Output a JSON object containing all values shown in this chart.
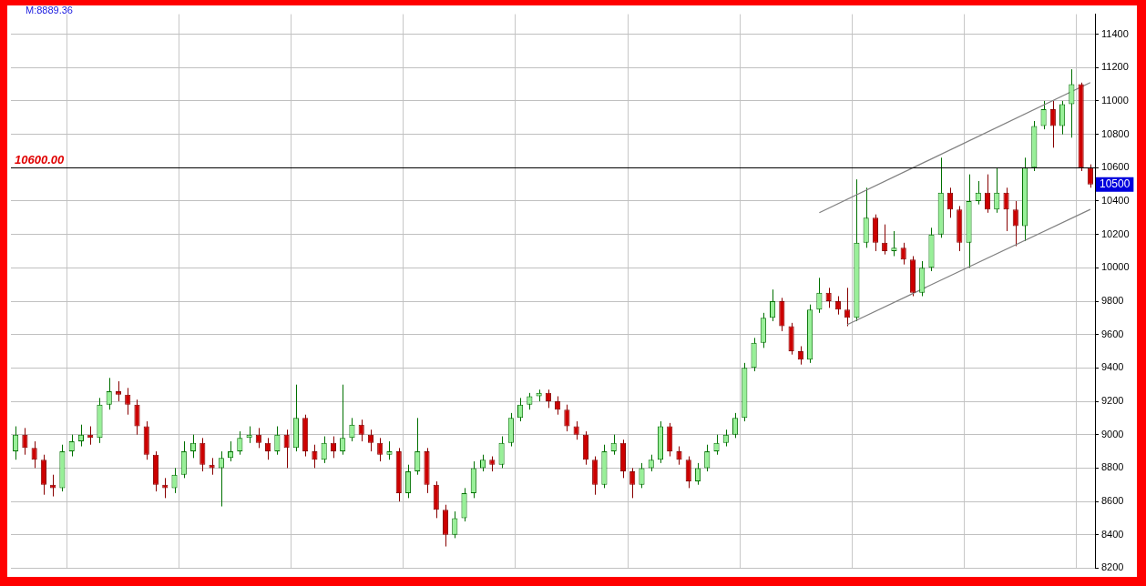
{
  "chart_data": {
    "type": "candlestick",
    "categories": [
      null,
      null,
      null,
      null,
      null,
      null,
      null,
      null,
      null,
      null,
      null,
      null,
      null,
      null,
      null,
      null,
      null,
      null,
      null,
      null,
      null,
      null,
      null,
      null,
      null,
      null,
      null,
      null,
      null,
      null,
      null,
      null,
      null,
      null,
      null,
      null,
      null,
      null,
      null,
      null,
      null,
      null,
      null,
      null,
      null,
      null,
      null,
      null,
      null,
      null,
      null,
      null,
      null,
      null,
      null,
      null,
      null,
      null,
      null,
      null,
      null,
      null,
      null,
      null,
      null,
      null,
      null,
      null,
      null,
      null,
      null,
      null,
      null,
      null,
      null,
      null,
      null,
      null,
      null,
      null,
      null,
      null,
      null,
      null,
      null,
      null,
      null,
      null,
      null,
      null,
      null,
      null,
      null,
      null,
      null,
      null,
      null,
      null,
      null,
      null,
      null,
      null,
      null,
      null,
      null,
      null,
      null,
      null,
      null,
      null,
      null,
      null,
      null,
      null,
      null,
      null
    ],
    "ohlc": [
      [
        8900,
        9050,
        8850,
        9000
      ],
      [
        9000,
        9040,
        8880,
        8920
      ],
      [
        8920,
        8960,
        8800,
        8850
      ],
      [
        8850,
        8880,
        8640,
        8700
      ],
      [
        8700,
        8760,
        8630,
        8680
      ],
      [
        8680,
        8940,
        8660,
        8900
      ],
      [
        8900,
        9000,
        8870,
        8960
      ],
      [
        8960,
        9060,
        8930,
        9000
      ],
      [
        9000,
        9050,
        8940,
        8980
      ],
      [
        8980,
        9220,
        8950,
        9180
      ],
      [
        9180,
        9340,
        9150,
        9260
      ],
      [
        9260,
        9320,
        9200,
        9240
      ],
      [
        9240,
        9280,
        9120,
        9180
      ],
      [
        9180,
        9210,
        9000,
        9050
      ],
      [
        9050,
        9080,
        8850,
        8880
      ],
      [
        8880,
        8900,
        8660,
        8700
      ],
      [
        8700,
        8740,
        8620,
        8680
      ],
      [
        8680,
        8800,
        8650,
        8760
      ],
      [
        8760,
        8960,
        8740,
        8900
      ],
      [
        8900,
        9000,
        8860,
        8950
      ],
      [
        8950,
        8980,
        8780,
        8820
      ],
      [
        8820,
        8860,
        8760,
        8800
      ],
      [
        8800,
        8900,
        8570,
        8860
      ],
      [
        8860,
        8960,
        8840,
        8900
      ],
      [
        8900,
        9020,
        8880,
        8980
      ],
      [
        8980,
        9050,
        8950,
        9000
      ],
      [
        9000,
        9040,
        8920,
        8950
      ],
      [
        8950,
        8980,
        8850,
        8900
      ],
      [
        8900,
        9050,
        8880,
        9000
      ],
      [
        9000,
        9030,
        8800,
        8920
      ],
      [
        8920,
        9300,
        8900,
        9100
      ],
      [
        9100,
        9120,
        8870,
        8900
      ],
      [
        8900,
        8940,
        8800,
        8850
      ],
      [
        8850,
        8990,
        8830,
        8950
      ],
      [
        8950,
        8990,
        8860,
        8900
      ],
      [
        8900,
        9300,
        8880,
        8980
      ],
      [
        8980,
        9100,
        8960,
        9060
      ],
      [
        9060,
        9090,
        8960,
        9000
      ],
      [
        9000,
        9030,
        8900,
        8950
      ],
      [
        8950,
        8980,
        8840,
        8880
      ],
      [
        8880,
        8960,
        8850,
        8900
      ],
      [
        8900,
        8920,
        8600,
        8650
      ],
      [
        8650,
        8820,
        8620,
        8780
      ],
      [
        8780,
        9100,
        8760,
        8900
      ],
      [
        8900,
        8920,
        8650,
        8700
      ],
      [
        8700,
        8720,
        8500,
        8550
      ],
      [
        8550,
        8580,
        8330,
        8400
      ],
      [
        8400,
        8540,
        8380,
        8500
      ],
      [
        8500,
        8680,
        8480,
        8650
      ],
      [
        8650,
        8840,
        8620,
        8800
      ],
      [
        8800,
        8880,
        8780,
        8850
      ],
      [
        8850,
        8870,
        8780,
        8820
      ],
      [
        8820,
        8990,
        8800,
        8950
      ],
      [
        8950,
        9130,
        8930,
        9100
      ],
      [
        9100,
        9220,
        9080,
        9180
      ],
      [
        9180,
        9250,
        9150,
        9230
      ],
      [
        9230,
        9270,
        9200,
        9250
      ],
      [
        9250,
        9270,
        9160,
        9200
      ],
      [
        9200,
        9230,
        9120,
        9150
      ],
      [
        9150,
        9180,
        9020,
        9050
      ],
      [
        9050,
        9080,
        8970,
        9000
      ],
      [
        9000,
        9020,
        8820,
        8850
      ],
      [
        8850,
        8870,
        8640,
        8700
      ],
      [
        8700,
        8940,
        8680,
        8900
      ],
      [
        8900,
        9000,
        8880,
        8950
      ],
      [
        8950,
        8970,
        8740,
        8780
      ],
      [
        8780,
        8800,
        8620,
        8700
      ],
      [
        8700,
        8830,
        8680,
        8800
      ],
      [
        8800,
        8880,
        8780,
        8850
      ],
      [
        8850,
        9080,
        8830,
        9050
      ],
      [
        9050,
        9070,
        8870,
        8900
      ],
      [
        8900,
        8930,
        8820,
        8850
      ],
      [
        8850,
        8870,
        8680,
        8720
      ],
      [
        8720,
        8830,
        8700,
        8800
      ],
      [
        8800,
        8940,
        8780,
        8900
      ],
      [
        8900,
        9000,
        8880,
        8950
      ],
      [
        8950,
        9030,
        8930,
        9000
      ],
      [
        9000,
        9130,
        8980,
        9100
      ],
      [
        9100,
        9430,
        9080,
        9400
      ],
      [
        9400,
        9580,
        9380,
        9550
      ],
      [
        9550,
        9730,
        9520,
        9700
      ],
      [
        9700,
        9870,
        9680,
        9800
      ],
      [
        9800,
        9820,
        9620,
        9650
      ],
      [
        9650,
        9670,
        9480,
        9500
      ],
      [
        9500,
        9530,
        9420,
        9450
      ],
      [
        9450,
        9780,
        9430,
        9750
      ],
      [
        9750,
        9940,
        9730,
        9850
      ],
      [
        9850,
        9880,
        9760,
        9800
      ],
      [
        9800,
        9830,
        9720,
        9750
      ],
      [
        9750,
        9880,
        9650,
        9700
      ],
      [
        9700,
        10530,
        9680,
        10150
      ],
      [
        10150,
        10480,
        10120,
        10300
      ],
      [
        10300,
        10320,
        10100,
        10150
      ],
      [
        10150,
        10260,
        10080,
        10100
      ],
      [
        10100,
        10220,
        10070,
        10120
      ],
      [
        10120,
        10150,
        10020,
        10050
      ],
      [
        10050,
        10070,
        9830,
        9850
      ],
      [
        9850,
        10040,
        9830,
        10000
      ],
      [
        10000,
        10240,
        9980,
        10200
      ],
      [
        10200,
        10660,
        10180,
        10450
      ],
      [
        10450,
        10480,
        10300,
        10350
      ],
      [
        10350,
        10370,
        10100,
        10150
      ],
      [
        10150,
        10560,
        10000,
        10400
      ],
      [
        10400,
        10520,
        10380,
        10450
      ],
      [
        10450,
        10560,
        10330,
        10350
      ],
      [
        10350,
        10600,
        10330,
        10450
      ],
      [
        10450,
        10480,
        10220,
        10350
      ],
      [
        10350,
        10400,
        10130,
        10250
      ],
      [
        10250,
        10660,
        10160,
        10600
      ],
      [
        10600,
        10880,
        10580,
        10850
      ],
      [
        10850,
        11000,
        10830,
        10950
      ],
      [
        10950,
        11000,
        10720,
        10850
      ],
      [
        10850,
        11000,
        10800,
        10980
      ],
      [
        10980,
        11190,
        10780,
        11100
      ],
      [
        11100,
        11110,
        10580,
        10600
      ],
      [
        10600,
        10620,
        10480,
        10500
      ]
    ],
    "series": [
      {
        "type": "line",
        "color": "#808080",
        "values": [
          null,
          null,
          null,
          null,
          null,
          null,
          null,
          null,
          null,
          null,
          null,
          null,
          null,
          null,
          null,
          null,
          null,
          null,
          null,
          null,
          null,
          null,
          null,
          null,
          null,
          null,
          null,
          null,
          null,
          null,
          null,
          null,
          null,
          null,
          null,
          null,
          null,
          null,
          null,
          null,
          null,
          null,
          null,
          null,
          null,
          null,
          null,
          null,
          null,
          null,
          null,
          null,
          null,
          null,
          null,
          null,
          null,
          null,
          null,
          null,
          null,
          null,
          null,
          null,
          null,
          null,
          null,
          null,
          null,
          null,
          null,
          null,
          null,
          null,
          null,
          null,
          null,
          null,
          null,
          null,
          null,
          null,
          null,
          null,
          null,
          null,
          10330,
          null,
          null,
          null,
          null,
          null,
          null,
          null,
          null,
          null,
          null,
          null,
          null,
          null,
          null,
          null,
          null,
          null,
          null,
          null,
          null,
          null,
          null,
          null,
          null,
          null,
          null,
          null,
          null,
          11110
        ]
      },
      {
        "type": "line",
        "color": "#808080",
        "values": [
          null,
          null,
          null,
          null,
          null,
          null,
          null,
          null,
          null,
          null,
          null,
          null,
          null,
          null,
          null,
          null,
          null,
          null,
          null,
          null,
          null,
          null,
          null,
          null,
          null,
          null,
          null,
          null,
          null,
          null,
          null,
          null,
          null,
          null,
          null,
          null,
          null,
          null,
          null,
          null,
          null,
          null,
          null,
          null,
          null,
          null,
          null,
          null,
          null,
          null,
          null,
          null,
          null,
          null,
          null,
          null,
          null,
          null,
          null,
          null,
          null,
          null,
          null,
          null,
          null,
          null,
          null,
          null,
          null,
          null,
          null,
          null,
          null,
          null,
          null,
          null,
          null,
          null,
          null,
          null,
          null,
          null,
          null,
          null,
          null,
          null,
          null,
          null,
          null,
          9660,
          null,
          null,
          null,
          null,
          null,
          null,
          null,
          null,
          null,
          null,
          null,
          null,
          null,
          null,
          null,
          null,
          null,
          null,
          null,
          null,
          null,
          null,
          null,
          null,
          null,
          10350
        ]
      }
    ],
    "ylim": [
      8200,
      11520
    ],
    "yticks": [
      8200,
      8400,
      8600,
      8800,
      9000,
      9200,
      9400,
      9600,
      9800,
      10000,
      10200,
      10400,
      10600,
      10800,
      11000,
      11200,
      11400
    ],
    "ref_lines": [
      {
        "axis": "y",
        "value": 10600,
        "label": "10600.00",
        "color": "#000000"
      }
    ],
    "annotations": [
      "M:8889.36",
      {
        "text": "10500",
        "y": 10500
      }
    ],
    "grid": true,
    "tick_labels": "y",
    "legend": false
  }
}
